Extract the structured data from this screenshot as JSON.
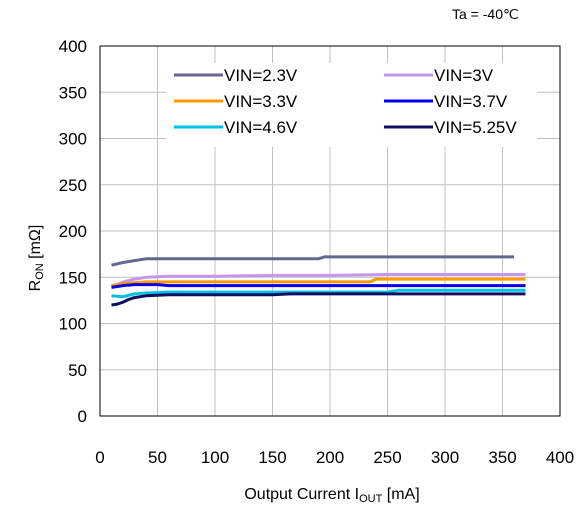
{
  "chart_data": {
    "type": "line",
    "annotation": "Ta = -40℃",
    "ylabel": {
      "main": "R",
      "sub": "ON",
      "rest": " [mΩ]"
    },
    "xlabel": {
      "main": "Output Current  I",
      "sub": "OUT",
      "rest": " [mA]"
    },
    "xlim": [
      0,
      400
    ],
    "ylim": [
      0,
      400
    ],
    "x_ticks": [
      "0",
      "50",
      "100",
      "150",
      "200",
      "250",
      "300",
      "350",
      "400"
    ],
    "y_ticks": [
      "0",
      "50",
      "100",
      "150",
      "200",
      "250",
      "300",
      "350",
      "400"
    ],
    "grid": true,
    "legend_position": "top-center",
    "series": [
      {
        "name": "VIN=2.3V",
        "color": "#66668f",
        "x": [
          10,
          20,
          30,
          40,
          60,
          100,
          150,
          190,
          195,
          250,
          300,
          360
        ],
        "y": [
          163,
          166,
          168,
          170,
          170,
          170,
          170,
          170,
          172,
          172,
          172,
          172
        ]
      },
      {
        "name": "VIN=3V",
        "color": "#c596ee",
        "x": [
          10,
          20,
          30,
          40,
          60,
          100,
          150,
          200,
          250,
          300,
          370
        ],
        "y": [
          139,
          145,
          148,
          150,
          151,
          151,
          152,
          152,
          153,
          153,
          153
        ]
      },
      {
        "name": "VIN=3.3V",
        "color": "#ff9900",
        "x": [
          10,
          20,
          30,
          40,
          60,
          100,
          150,
          200,
          235,
          240,
          300,
          370
        ],
        "y": [
          141,
          143,
          144,
          145,
          145,
          145,
          145,
          145,
          145,
          148,
          148,
          148
        ]
      },
      {
        "name": "VIN=3.7V",
        "color": "#0000ee",
        "x": [
          10,
          20,
          30,
          40,
          50,
          60,
          100,
          150,
          200,
          250,
          300,
          370
        ],
        "y": [
          139,
          141,
          142,
          142,
          142,
          141,
          141,
          141,
          141,
          141,
          141,
          141
        ]
      },
      {
        "name": "VIN=4.6V",
        "color": "#00c0e6",
        "x": [
          10,
          20,
          30,
          40,
          60,
          100,
          150,
          200,
          250,
          260,
          300,
          370
        ],
        "y": [
          130,
          129,
          132,
          133,
          134,
          134,
          134,
          134,
          134,
          136,
          136,
          136
        ]
      },
      {
        "name": "VIN=5.25V",
        "color": "#101060",
        "x": [
          10,
          15,
          20,
          25,
          30,
          40,
          60,
          100,
          150,
          165,
          200,
          250,
          300,
          370
        ],
        "y": [
          120,
          121,
          123,
          126,
          128,
          130,
          131,
          131,
          131,
          132,
          132,
          132,
          132,
          132
        ]
      }
    ]
  }
}
